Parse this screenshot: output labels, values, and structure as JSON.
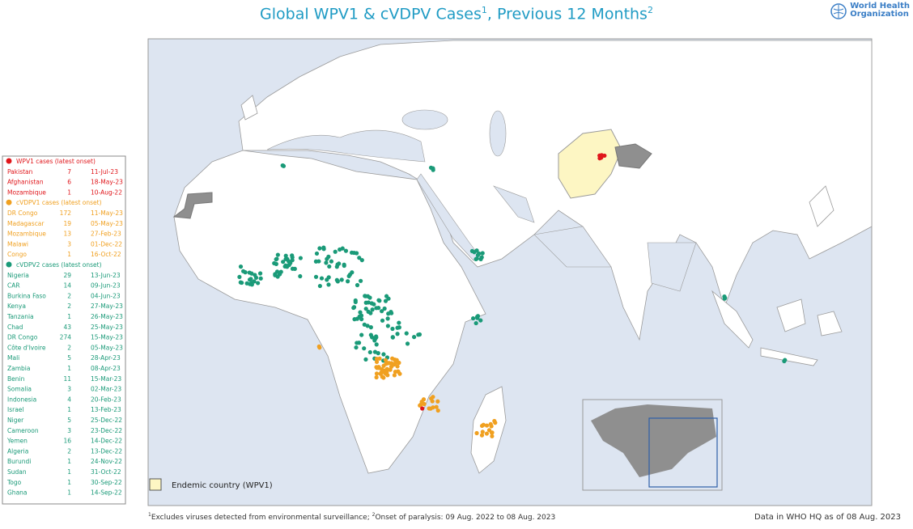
{
  "header": {
    "title_main": "Global WPV1 & cVDPV Cases",
    "title_sup1": "1",
    "title_mid": ", Previous 12 Months",
    "title_sup2": "2",
    "logo_line1": "World Health",
    "logo_line2": "Organization"
  },
  "legend": {
    "groups": [
      {
        "heading": "WPV1 cases (latest onset)",
        "color": "#e0161b",
        "rows": [
          [
            "Pakistan",
            7,
            "11-Jul-23"
          ],
          [
            "Afghanistan",
            6,
            "18-May-23"
          ],
          [
            "Mozambique",
            1,
            "10-Aug-22"
          ]
        ]
      },
      {
        "heading": "cVDPV1 cases (latest onset)",
        "color": "#f0a020",
        "rows": [
          [
            "DR Congo",
            172,
            "11-May-23"
          ],
          [
            "Madagascar",
            19,
            "05-May-23"
          ],
          [
            "Mozambique",
            13,
            "27-Feb-23"
          ],
          [
            "Malawi",
            3,
            "01-Dec-22"
          ],
          [
            "Congo",
            1,
            "16-Oct-22"
          ]
        ]
      },
      {
        "heading": "cVDPV2 cases (latest onset)",
        "color": "#1a9a78",
        "rows": [
          [
            "Nigeria",
            29,
            "13-Jun-23"
          ],
          [
            "CAR",
            14,
            "09-Jun-23"
          ],
          [
            "Burkina Faso",
            2,
            "04-Jun-23"
          ],
          [
            "Kenya",
            2,
            "27-May-23"
          ],
          [
            "Tanzania",
            1,
            "26-May-23"
          ],
          [
            "Chad",
            43,
            "25-May-23"
          ],
          [
            "DR Congo",
            274,
            "15-May-23"
          ],
          [
            "Côte d'Ivoire",
            2,
            "05-May-23"
          ],
          [
            "Mali",
            5,
            "28-Apr-23"
          ],
          [
            "Zambia",
            1,
            "08-Apr-23"
          ],
          [
            "Benin",
            11,
            "15-Mar-23"
          ],
          [
            "Somalia",
            3,
            "02-Mar-23"
          ],
          [
            "Indonesia",
            4,
            "20-Feb-23"
          ],
          [
            "Israel",
            1,
            "13-Feb-23"
          ],
          [
            "Niger",
            5,
            "25-Dec-22"
          ],
          [
            "Cameroon",
            3,
            "23-Dec-22"
          ],
          [
            "Yemen",
            16,
            "14-Dec-22"
          ],
          [
            "Algeria",
            2,
            "13-Dec-22"
          ],
          [
            "Burundi",
            1,
            "24-Nov-22"
          ],
          [
            "Sudan",
            1,
            "31-Oct-22"
          ],
          [
            "Togo",
            1,
            "30-Sep-22"
          ],
          [
            "Ghana",
            1,
            "14-Sep-22"
          ]
        ]
      }
    ]
  },
  "endemic_label": "Endemic country (WPV1)",
  "footer": {
    "sup1": "1",
    "note1": "Excludes viruses detected from environmental surveillance;  ",
    "sup2": "2",
    "note2": "Onset of paralysis: 09 Aug. 2022 to 08 Aug. 2023",
    "source": "Data in WHO HQ as of 08  Aug. 2023"
  }
}
